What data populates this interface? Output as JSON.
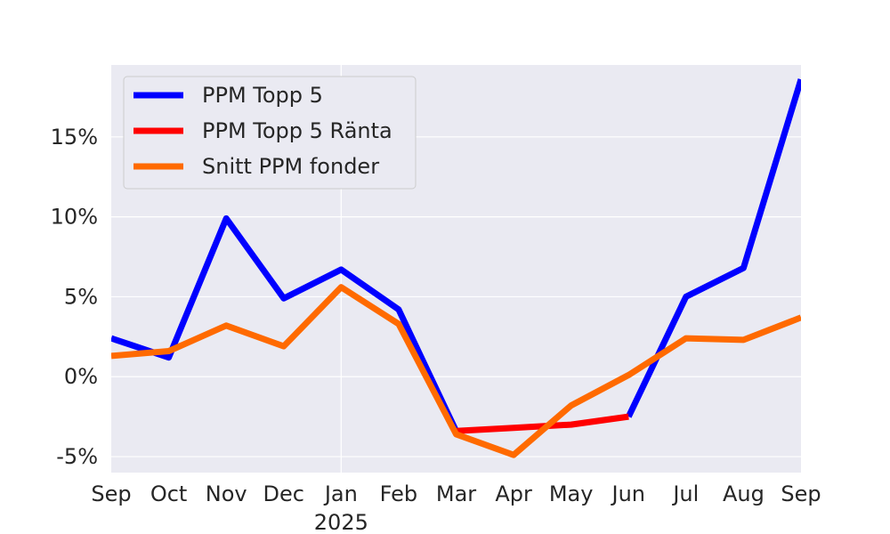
{
  "chart_data": {
    "type": "line",
    "title": "",
    "xlabel": "",
    "ylabel": "",
    "x": [
      "2024-09",
      "2024-10",
      "2024-11",
      "2024-12",
      "2025-01",
      "2025-02",
      "2025-03",
      "2025-04",
      "2025-05",
      "2025-06",
      "2025-07",
      "2025-08",
      "2025-09"
    ],
    "x_tick_labels": [
      "Sep",
      "Oct",
      "Nov",
      "Dec",
      "Jan",
      "Feb",
      "Mar",
      "Apr",
      "May",
      "Jun",
      "Jul",
      "Aug",
      "Sep"
    ],
    "x_year_label": "2025",
    "ylim": [
      -6,
      19.5
    ],
    "y_ticks": [
      -5,
      0,
      5,
      10,
      15
    ],
    "y_tick_labels": [
      "-5%",
      "0%",
      "5%",
      "10%",
      "15%"
    ],
    "grid": true,
    "legend_position": "top-left",
    "background_color": "#eaeaf2",
    "series": [
      {
        "name": "PPM Topp 5",
        "color": "#0000ff",
        "values": [
          2.4,
          1.2,
          9.9,
          4.9,
          6.7,
          4.2,
          -3.4,
          null,
          null,
          -2.5,
          5.0,
          6.8,
          18.6
        ]
      },
      {
        "name": "PPM Topp 5 Ränta",
        "color": "#ff0000",
        "values": [
          null,
          null,
          null,
          null,
          null,
          null,
          -3.4,
          -3.2,
          -3.0,
          -2.5,
          null,
          null,
          null
        ]
      },
      {
        "name": "Snitt PPM fonder",
        "color": "#ff6a00",
        "values": [
          1.3,
          1.6,
          3.2,
          1.9,
          5.6,
          3.3,
          -3.6,
          -4.9,
          -1.8,
          0.1,
          2.4,
          2.3,
          3.7
        ]
      }
    ]
  }
}
